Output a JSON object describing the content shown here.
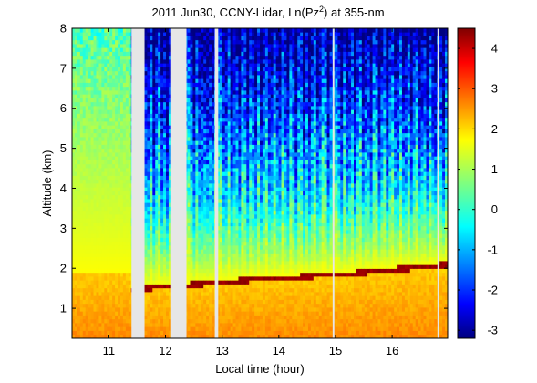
{
  "chart_data": {
    "type": "heatmap",
    "title_prefix": "2011 Jun30, CCNY-Lidar, Ln(Pz",
    "title_sup": "2",
    "title_suffix": ") at 355-nm",
    "xlabel": "Local time (hour)",
    "ylabel": "Altitude (km)",
    "xlim": [
      10.35,
      16.98
    ],
    "ylim": [
      0.25,
      8.0
    ],
    "xticks": [
      11,
      12,
      13,
      14,
      15,
      16
    ],
    "yticks": [
      1,
      2,
      3,
      4,
      5,
      6,
      7,
      8
    ],
    "colorbar": {
      "range": [
        -3.2,
        4.5
      ],
      "ticks": [
        -3,
        -2,
        -1,
        0,
        1,
        2,
        3,
        4
      ],
      "colormap": "jet"
    },
    "no_data_intervals": [
      [
        11.4,
        11.63
      ],
      [
        12.1,
        12.37
      ],
      [
        12.87,
        12.93
      ],
      [
        14.95,
        14.98
      ],
      [
        16.8,
        16.83
      ]
    ],
    "data_gap_color": "#e6e6e6",
    "cloud_layer_altitude_km": [
      {
        "t": 11.38,
        "z": 1.45
      },
      {
        "t": 11.9,
        "z": 1.55
      },
      {
        "t": 12.5,
        "z": 1.6
      },
      {
        "t": 13.0,
        "z": 1.65
      },
      {
        "t": 13.5,
        "z": 1.72
      },
      {
        "t": 14.0,
        "z": 1.76
      },
      {
        "t": 14.5,
        "z": 1.8
      },
      {
        "t": 15.0,
        "z": 1.85
      },
      {
        "t": 15.5,
        "z": 1.9
      },
      {
        "t": 16.0,
        "z": 1.97
      },
      {
        "t": 16.5,
        "z": 2.03
      },
      {
        "t": 16.95,
        "z": 2.1
      }
    ],
    "near_surface_value_range": [
      2.0,
      2.5
    ],
    "clear_sky_value_at_8km": 0.3,
    "noise_column_times": [
      11.3,
      11.68,
      11.8,
      11.95,
      12.03,
      12.5,
      12.62,
      12.72,
      12.82,
      13.05,
      13.18,
      13.3,
      13.45,
      13.58,
      13.7,
      13.85,
      14.0,
      14.15,
      14.3,
      14.45,
      14.55,
      14.7,
      14.88,
      15.1,
      15.22,
      15.35,
      15.5,
      15.62,
      15.78,
      15.92,
      16.08,
      16.22,
      16.35,
      16.5,
      16.62,
      16.75,
      16.9
    ],
    "colors": {
      "data_gap": "#e6e6e6",
      "cloud": "#8b0000"
    }
  }
}
